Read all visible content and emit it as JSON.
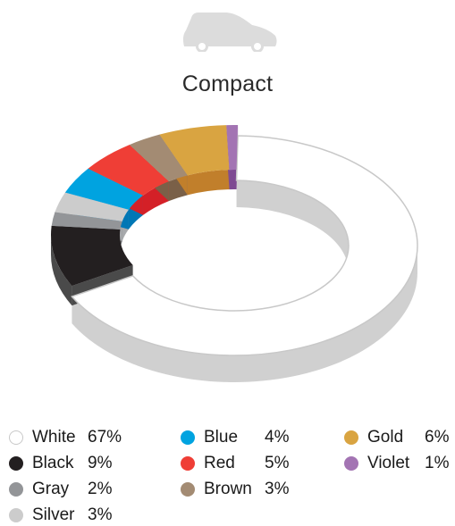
{
  "chart_data": {
    "type": "pie",
    "title": "Compact",
    "slices": [
      {
        "name": "White",
        "value": 67,
        "label": "67%",
        "color": "#ffffff",
        "side": "#d0d0d0",
        "outline": "#c8c8c8"
      },
      {
        "name": "Black",
        "value": 9,
        "label": "9%",
        "color": "#231f20",
        "side": "#4a4a4a"
      },
      {
        "name": "Gray",
        "value": 2,
        "label": "2%",
        "color": "#939598",
        "side": "#6d6e70"
      },
      {
        "name": "Silver",
        "value": 3,
        "label": "3%",
        "color": "#cccccc",
        "side": "#a7a9ac"
      },
      {
        "name": "Blue",
        "value": 4,
        "label": "4%",
        "color": "#00a3e0",
        "side": "#0077b5"
      },
      {
        "name": "Red",
        "value": 5,
        "label": "5%",
        "color": "#ef3e36",
        "side": "#d42027"
      },
      {
        "name": "Brown",
        "value": 3,
        "label": "3%",
        "color": "#a38b73",
        "side": "#7a6048"
      },
      {
        "name": "Gold",
        "value": 6,
        "label": "6%",
        "color": "#d9a441",
        "side": "#c17f2b"
      },
      {
        "name": "Violet",
        "value": 1,
        "label": "1%",
        "color": "#a374b3",
        "side": "#7e4a92"
      }
    ],
    "legend_position": "bottom"
  },
  "icon": {
    "name": "compact-car-icon",
    "color": "#dcdcdc"
  }
}
